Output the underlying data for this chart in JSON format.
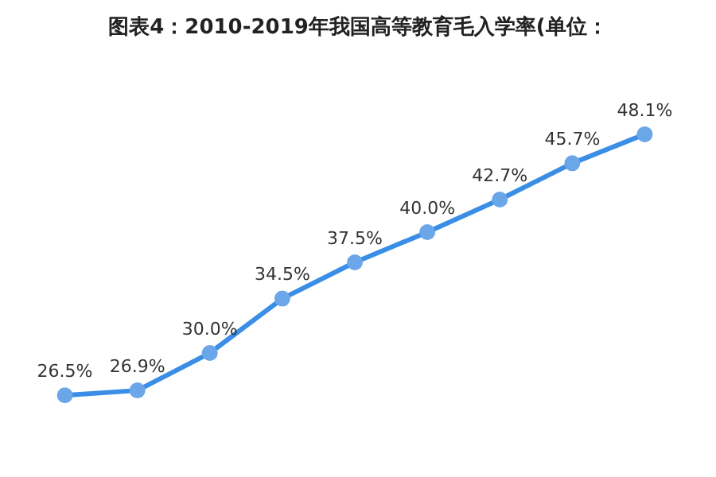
{
  "chart_data": {
    "type": "line",
    "title": "图表4：2010-2019年我国高等教育毛入学率(单位：",
    "categories": [
      null,
      null,
      null,
      null,
      null,
      null,
      null,
      null,
      null
    ],
    "series": [
      {
        "color": "#3a8ee6",
        "values": [
          26.5,
          26.9,
          30.0,
          34.5,
          37.5,
          40.0,
          42.7,
          45.7,
          48.1
        ],
        "value_labels": [
          "26.5%",
          "26.9%",
          "30.0%",
          "34.5%",
          "37.5%",
          "40.0%",
          "42.7%",
          "45.7%",
          "48.1%"
        ]
      }
    ],
    "marker": "circle",
    "legend": false,
    "grid": false,
    "tick_labels": false
  }
}
